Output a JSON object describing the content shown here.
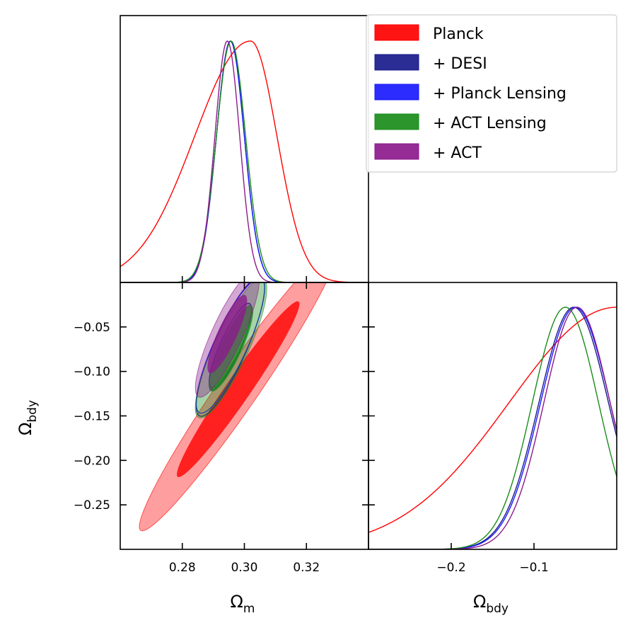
{
  "chart_data": {
    "type": "triangle-posterior",
    "parameters": [
      {
        "symbol": "Ω",
        "subscript": "m",
        "range": [
          0.26,
          0.34
        ]
      },
      {
        "symbol": "Ω",
        "subscript": "bdy",
        "range": [
          -0.3,
          0.0
        ]
      }
    ],
    "ticks": {
      "om_bottom": [
        {
          "v": 0.28,
          "label": "0.28"
        },
        {
          "v": 0.3,
          "label": "0.30"
        },
        {
          "v": 0.32,
          "label": "0.32"
        }
      ],
      "obdy_left": [
        {
          "v": -0.05,
          "label": "−0.05"
        },
        {
          "v": -0.1,
          "label": "−0.10"
        },
        {
          "v": -0.15,
          "label": "−0.15"
        },
        {
          "v": -0.2,
          "label": "−0.20"
        },
        {
          "v": -0.25,
          "label": "−0.25"
        }
      ],
      "obdy_bottom": [
        {
          "v": -0.2,
          "label": "−0.2"
        },
        {
          "v": -0.1,
          "label": "−0.1"
        }
      ]
    },
    "legend": {
      "position": "top-right",
      "entries": [
        {
          "label": "Planck",
          "color": "#ff0000"
        },
        {
          "label": "+ DESI",
          "color": "#1a1a8c"
        },
        {
          "label": "+ Planck Lensing",
          "color": "#1a1aff"
        },
        {
          "label": "+ ACT Lensing",
          "color": "#1a8c1a"
        },
        {
          "label": "+ ACT",
          "color": "#8c1a8c"
        }
      ]
    },
    "series": [
      {
        "name": "Planck",
        "color": "#ff0000",
        "fill": true,
        "om_pdf": {
          "mean": 0.302,
          "sigma_low": 0.018,
          "sigma_high": 0.0085
        },
        "obdy_pdf": {
          "mean": 0.0,
          "sigma": 0.13
        },
        "contour": {
          "om_mean": 0.298,
          "obdy_mean": -0.12,
          "om_sigma": 0.013,
          "obdy_sigma": 0.065,
          "rho": 0.97
        }
      },
      {
        "name": "+ DESI",
        "color": "#1a1a8c",
        "fill": false,
        "om_pdf": {
          "mean": 0.2955,
          "sigma": 0.0045
        },
        "obdy_pdf": {
          "mean": -0.052,
          "sigma": 0.042
        },
        "contour": {
          "om_mean": 0.2955,
          "obdy_mean": -0.072,
          "om_sigma": 0.0045,
          "obdy_sigma": 0.032,
          "rho": 0.85
        }
      },
      {
        "name": "+ Planck Lensing",
        "color": "#1a1aff",
        "fill": false,
        "om_pdf": {
          "mean": 0.2955,
          "sigma": 0.0045
        },
        "obdy_pdf": {
          "mean": -0.05,
          "sigma": 0.042
        },
        "contour": {
          "om_mean": 0.2955,
          "obdy_mean": -0.071,
          "om_sigma": 0.0045,
          "obdy_sigma": 0.031,
          "rho": 0.85
        }
      },
      {
        "name": "+ ACT Lensing",
        "color": "#1a8c1a",
        "fill": true,
        "om_pdf": {
          "mean": 0.2957,
          "sigma": 0.0047
        },
        "obdy_pdf": {
          "mean": -0.062,
          "sigma": 0.04
        },
        "contour": {
          "om_mean": 0.2957,
          "obdy_mean": -0.074,
          "om_sigma": 0.0047,
          "obdy_sigma": 0.032,
          "rho": 0.85
        }
      },
      {
        "name": "+ ACT",
        "color": "#8c1a8c",
        "fill": true,
        "om_pdf": {
          "mean": 0.2945,
          "sigma": 0.004
        },
        "obdy_pdf": {
          "mean": -0.048,
          "sigma": 0.04
        },
        "contour": {
          "om_mean": 0.2945,
          "obdy_mean": -0.058,
          "om_sigma": 0.0042,
          "obdy_sigma": 0.029,
          "rho": 0.85
        }
      }
    ]
  }
}
